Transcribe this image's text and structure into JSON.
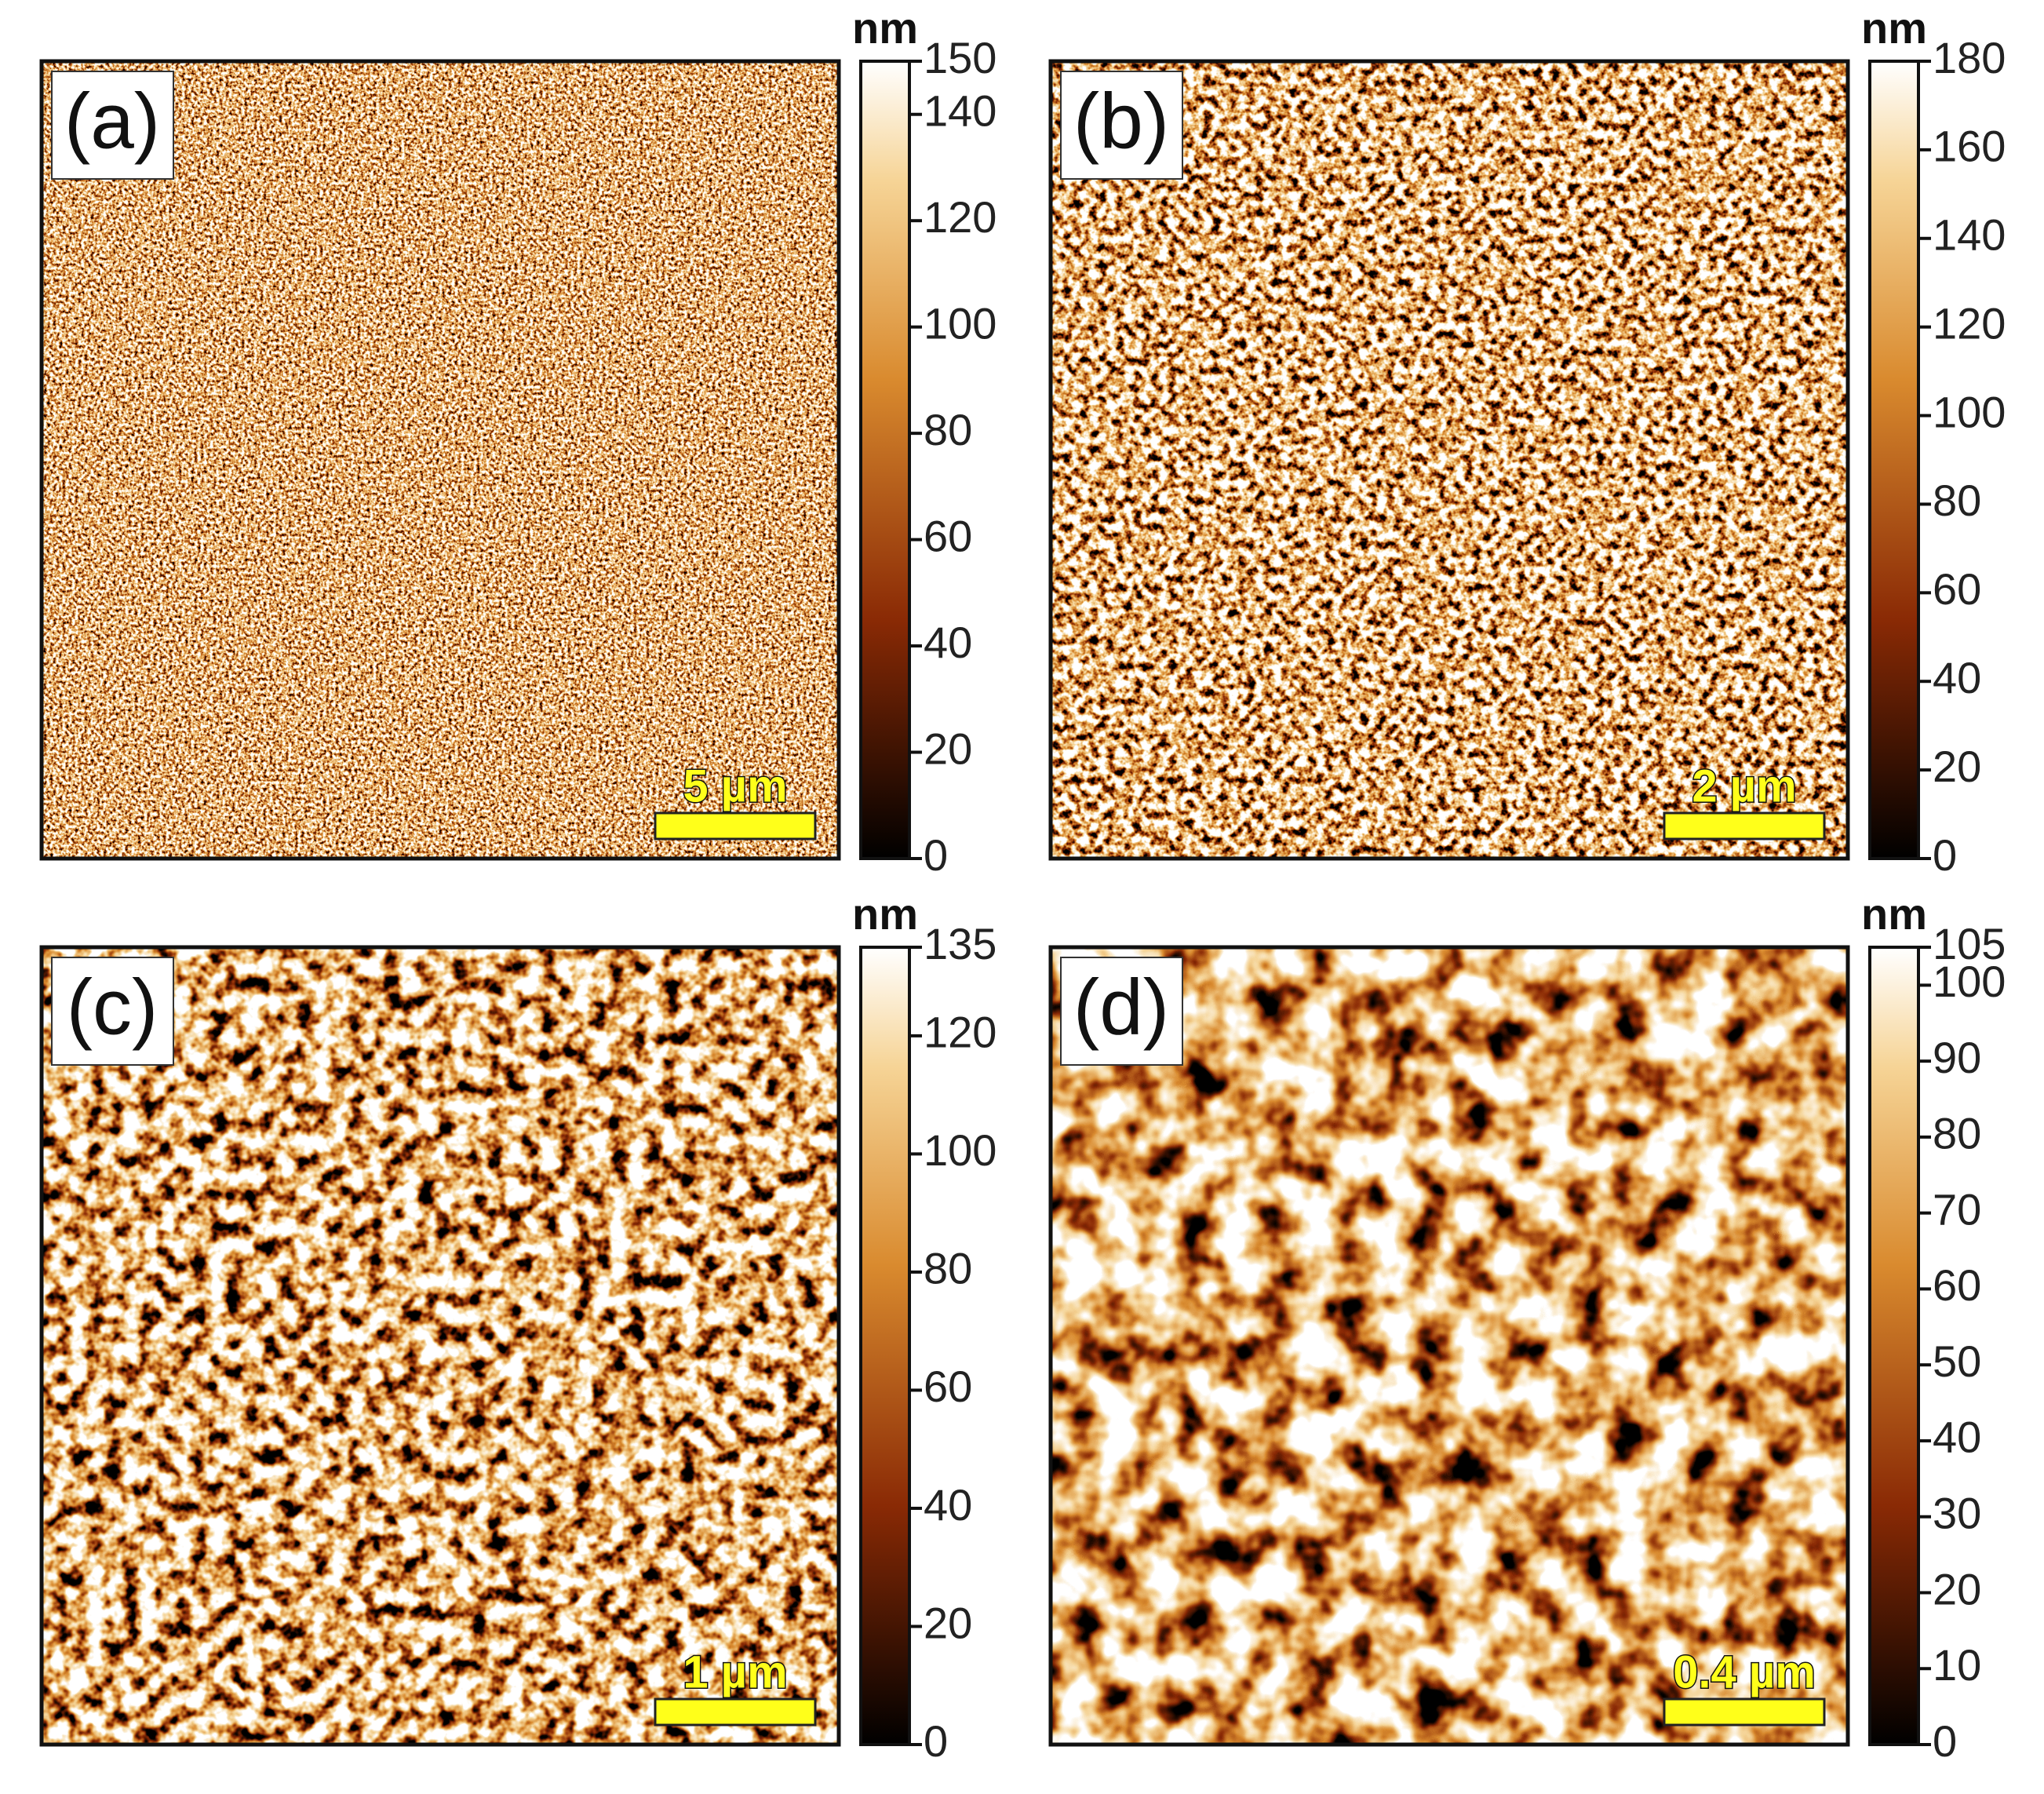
{
  "panels": [
    {
      "label": "(a)",
      "scale_bar": "5 µm",
      "colorbar": {
        "unit": "nm",
        "lim": [
          0,
          150
        ],
        "ticks": [
          0,
          20,
          40,
          60,
          80,
          100,
          120,
          140,
          150
        ]
      }
    },
    {
      "label": "(b)",
      "scale_bar": "2 µm",
      "colorbar": {
        "unit": "nm",
        "lim": [
          0,
          180
        ],
        "ticks": [
          0,
          20,
          40,
          60,
          80,
          100,
          120,
          140,
          160,
          180
        ]
      }
    },
    {
      "label": "(c)",
      "scale_bar": "1 µm",
      "colorbar": {
        "unit": "nm",
        "lim": [
          0,
          135
        ],
        "ticks": [
          0,
          20,
          40,
          60,
          80,
          100,
          120,
          135
        ]
      }
    },
    {
      "label": "(d)",
      "scale_bar": "0.4 µm",
      "colorbar": {
        "unit": "nm",
        "lim": [
          0,
          105
        ],
        "ticks": [
          0,
          10,
          20,
          30,
          40,
          50,
          60,
          70,
          80,
          90,
          100,
          105
        ]
      }
    }
  ]
}
